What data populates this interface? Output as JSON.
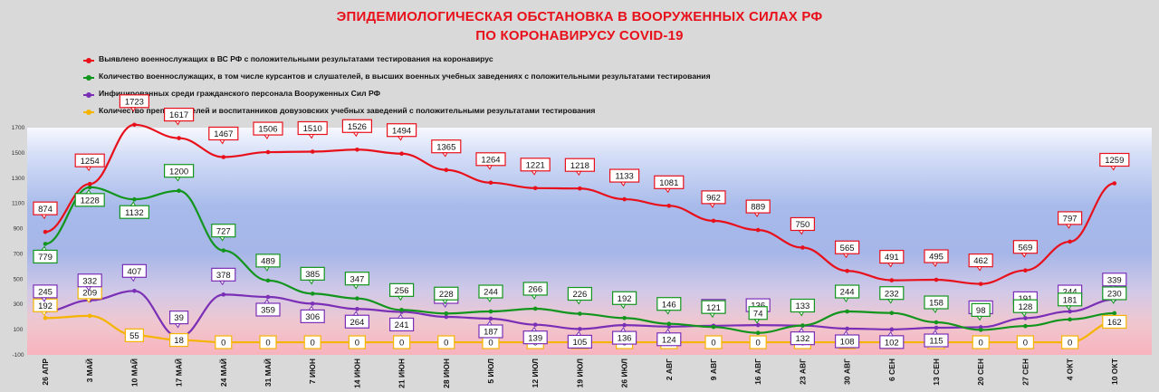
{
  "title_line1": "ЭПИДЕМИОЛОГИЧЕСКАЯ ОБСТАНОВКА В ВООРУЖЕННЫХ СИЛАХ РФ",
  "title_line2": "ПО КОРОНАВИРУСУ COVID-19",
  "chart_data": {
    "type": "line",
    "categories": [
      "26 АПР",
      "3 МАЙ",
      "10 МАЙ",
      "17 МАЙ",
      "24 МАЙ",
      "31 МАЙ",
      "7 ИЮН",
      "14 ИЮН",
      "21 ИЮН",
      "28 ИЮН",
      "5 ИЮЛ",
      "12 ИЮЛ",
      "19 ИЮЛ",
      "26 ИЮЛ",
      "2 АВГ",
      "9 АВГ",
      "16 АВГ",
      "23 АВГ",
      "30 АВГ",
      "6 СЕН",
      "13 СЕН",
      "20 СЕН",
      "27 СЕН",
      "4 ОКТ",
      "10 ОКТ"
    ],
    "y_ticks": [
      "1700",
      "1500",
      "1300",
      "1100",
      "900",
      "700",
      "500",
      "300",
      "100",
      "-100"
    ],
    "ylim": [
      -100,
      1700
    ],
    "grid": false,
    "legend_position": "top-left",
    "series": [
      {
        "name": "Выявлено военнослужащих в ВС РФ с положительными результатами тестирования на коронавирус",
        "color": "#e8101a",
        "values": [
          874,
          1254,
          1723,
          1617,
          1467,
          1506,
          1510,
          1526,
          1494,
          1365,
          1264,
          1221,
          1218,
          1133,
          1081,
          962,
          889,
          750,
          565,
          491,
          495,
          462,
          569,
          797,
          1259
        ]
      },
      {
        "name": "Количество военнослужащих, в том числе курсантов и слушателей, в высших военных учебных заведениях с положительными результатами тестирования",
        "color": "#12951c",
        "values": [
          779,
          1228,
          1132,
          1200,
          727,
          489,
          385,
          347,
          256,
          228,
          244,
          266,
          226,
          192,
          146,
          121,
          74,
          133,
          244,
          232,
          158,
          98,
          128,
          181,
          230
        ]
      },
      {
        "name": "Инфицированных среди гражданского персонала Вооруженных Сил РФ",
        "color": "#7a2fb6",
        "values": [
          245,
          332,
          407,
          39,
          378,
          359,
          306,
          264,
          241,
          201,
          187,
          139,
          105,
          136,
          124,
          131,
          136,
          132,
          108,
          102,
          115,
          119,
          191,
          244,
          339
        ]
      },
      {
        "name": "Количество преподавателей и воспитанников довузовских учебных заведений с положительными результатами тестирования",
        "color": "#f5b400",
        "values": [
          192,
          209,
          55,
          18,
          0,
          0,
          0,
          0,
          0,
          0,
          0,
          0,
          0,
          0,
          0,
          0,
          0,
          0,
          0,
          0,
          0,
          0,
          0,
          0,
          162
        ]
      }
    ]
  }
}
